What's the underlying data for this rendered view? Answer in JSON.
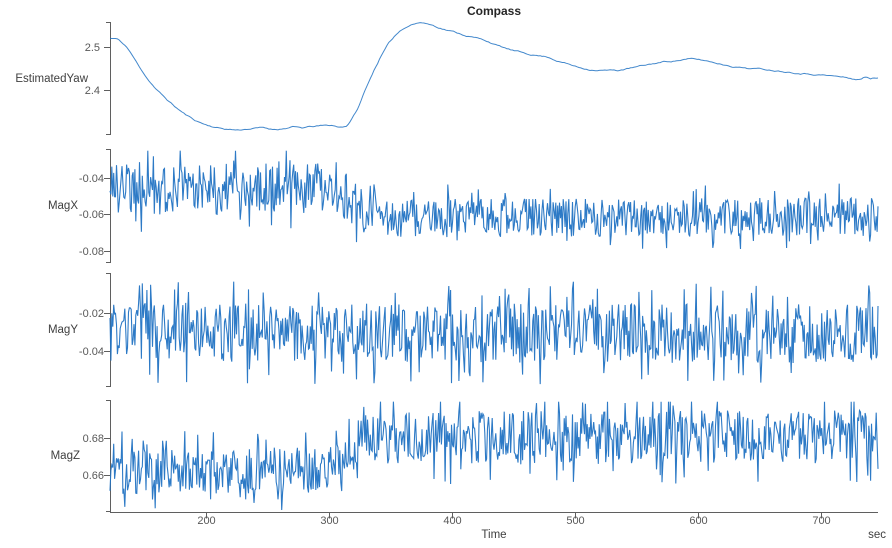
{
  "figure": {
    "title": "Compass",
    "xlabel": "Time",
    "x_unit": "sec"
  },
  "colors": {
    "line": "#2273c3",
    "axis": "#5f5f5f",
    "tick_text": "#595959",
    "label_text": "#3f3f3f",
    "title_text": "#262626",
    "background": "#ffffff"
  },
  "chart_data": {
    "type": "line",
    "title": "Compass",
    "xlabel": "Time",
    "x_unit": "sec",
    "xlim": [
      122,
      746
    ],
    "x_ticks": [
      [
        200,
        "200"
      ],
      [
        300,
        "300"
      ],
      [
        400,
        "400"
      ],
      [
        500,
        "500"
      ],
      [
        600,
        "600"
      ],
      [
        700,
        "700"
      ]
    ],
    "grid": false,
    "legend": "none",
    "subplots": [
      {
        "label": "EstimatedYaw",
        "ylim": [
          2.295,
          2.558
        ],
        "y_ticks": [
          [
            2.4,
            "2.4"
          ],
          [
            2.5,
            "2.5"
          ]
        ],
        "series": {
          "kind": "keypoints",
          "wiggle_amp": 0.0012,
          "dt": 1.5,
          "seed": 11,
          "points": [
            [
              120,
              2.52
            ],
            [
              127,
              2.519
            ],
            [
              130,
              2.514
            ],
            [
              136,
              2.498
            ],
            [
              144,
              2.462
            ],
            [
              152,
              2.428
            ],
            [
              160,
              2.4
            ],
            [
              168,
              2.378
            ],
            [
              176,
              2.358
            ],
            [
              184,
              2.341
            ],
            [
              192,
              2.328
            ],
            [
              200,
              2.319
            ],
            [
              208,
              2.313
            ],
            [
              216,
              2.309
            ],
            [
              226,
              2.307
            ],
            [
              236,
              2.31
            ],
            [
              246,
              2.312
            ],
            [
              254,
              2.308
            ],
            [
              262,
              2.31
            ],
            [
              270,
              2.314
            ],
            [
              278,
              2.311
            ],
            [
              286,
              2.314
            ],
            [
              294,
              2.316
            ],
            [
              302,
              2.317
            ],
            [
              308,
              2.313
            ],
            [
              314,
              2.316
            ],
            [
              318,
              2.33
            ],
            [
              324,
              2.36
            ],
            [
              330,
              2.404
            ],
            [
              336,
              2.443
            ],
            [
              342,
              2.478
            ],
            [
              348,
              2.506
            ],
            [
              354,
              2.527
            ],
            [
              360,
              2.543
            ],
            [
              366,
              2.552
            ],
            [
              372,
              2.557
            ],
            [
              378,
              2.556
            ],
            [
              384,
              2.551
            ],
            [
              390,
              2.545
            ],
            [
              396,
              2.54
            ],
            [
              402,
              2.535
            ],
            [
              410,
              2.528
            ],
            [
              420,
              2.521
            ],
            [
              430,
              2.512
            ],
            [
              437,
              2.503
            ],
            [
              445,
              2.495
            ],
            [
              452,
              2.489
            ],
            [
              460,
              2.484
            ],
            [
              470,
              2.48
            ],
            [
              478,
              2.477
            ],
            [
              486,
              2.468
            ],
            [
              495,
              2.46
            ],
            [
              503,
              2.452
            ],
            [
              511,
              2.448
            ],
            [
              520,
              2.447
            ],
            [
              528,
              2.446
            ],
            [
              534,
              2.445
            ],
            [
              540,
              2.448
            ],
            [
              548,
              2.452
            ],
            [
              556,
              2.456
            ],
            [
              564,
              2.461
            ],
            [
              572,
              2.465
            ],
            [
              580,
              2.468
            ],
            [
              588,
              2.471
            ],
            [
              594,
              2.472
            ],
            [
              600,
              2.47
            ],
            [
              607,
              2.467
            ],
            [
              614,
              2.463
            ],
            [
              621,
              2.459
            ],
            [
              628,
              2.456
            ],
            [
              635,
              2.453
            ],
            [
              642,
              2.451
            ],
            [
              650,
              2.449
            ],
            [
              658,
              2.447
            ],
            [
              666,
              2.445
            ],
            [
              674,
              2.443
            ],
            [
              682,
              2.441
            ],
            [
              690,
              2.439
            ],
            [
              698,
              2.437
            ],
            [
              706,
              2.434
            ],
            [
              714,
              2.431
            ],
            [
              721,
              2.428
            ],
            [
              727,
              2.425
            ],
            [
              731,
              2.424
            ],
            [
              736,
              2.43
            ],
            [
              740,
              2.427
            ],
            [
              743,
              2.429
            ],
            [
              746,
              2.428
            ]
          ]
        }
      },
      {
        "label": "MagX",
        "ylim": [
          -0.0866,
          -0.0241
        ],
        "y_ticks": [
          [
            -0.08,
            "-0.08"
          ],
          [
            -0.06,
            "-0.06"
          ],
          [
            -0.04,
            "-0.04"
          ]
        ],
        "series": {
          "kind": "noise",
          "dt": 0.75,
          "seed": 21,
          "spike_prob": 0.07,
          "mean_points": [
            [
              120,
              -0.0455
            ],
            [
              305,
              -0.045
            ],
            [
              318,
              -0.054
            ],
            [
              332,
              -0.061
            ],
            [
              360,
              -0.062
            ],
            [
              746,
              -0.0612
            ]
          ],
          "amp_points": [
            [
              120,
              0.015
            ],
            [
              310,
              0.015
            ],
            [
              335,
              0.0105
            ],
            [
              746,
              0.0105
            ]
          ]
        }
      },
      {
        "label": "MagY",
        "ylim": [
          -0.0589,
          0.0011
        ],
        "y_ticks": [
          [
            -0.04,
            "-0.04"
          ],
          [
            -0.02,
            "-0.02"
          ]
        ],
        "series": {
          "kind": "noise",
          "dt": 0.75,
          "seed": 33,
          "spike_prob": 0.07,
          "mean_points": [
            [
              120,
              -0.03
            ],
            [
              746,
              -0.031
            ]
          ],
          "amp_points": [
            [
              120,
              0.0155
            ],
            [
              746,
              0.0155
            ]
          ]
        }
      },
      {
        "label": "MagZ",
        "ylim": [
          0.64,
          0.7005
        ],
        "y_ticks": [
          [
            0.66,
            "0.66"
          ],
          [
            0.68,
            "0.68"
          ]
        ],
        "series": {
          "kind": "noise",
          "dt": 0.75,
          "seed": 47,
          "spike_prob": 0.07,
          "mean_points": [
            [
              120,
              0.6615
            ],
            [
              290,
              0.663
            ],
            [
              310,
              0.668
            ],
            [
              330,
              0.679
            ],
            [
              360,
              0.68
            ],
            [
              746,
              0.6805
            ]
          ],
          "amp_points": [
            [
              120,
              0.0125
            ],
            [
              300,
              0.0125
            ],
            [
              330,
              0.0145
            ],
            [
              746,
              0.0145
            ]
          ]
        }
      }
    ]
  }
}
